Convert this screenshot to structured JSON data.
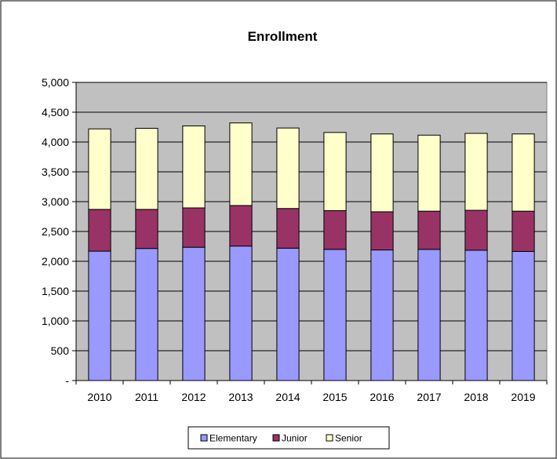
{
  "chart_data": {
    "type": "bar",
    "stacked": true,
    "title": "Enrollment",
    "xlabel": "",
    "ylabel": "",
    "categories": [
      "2010",
      "2011",
      "2012",
      "2013",
      "2014",
      "2015",
      "2016",
      "2017",
      "2018",
      "2019"
    ],
    "ylim": [
      0,
      5000
    ],
    "yticks": [
      0,
      500,
      1000,
      1500,
      2000,
      2500,
      3000,
      3500,
      4000,
      4500,
      5000
    ],
    "ytick_labels": [
      "-",
      "500",
      "1,000",
      "1,500",
      "2,000",
      "2,500",
      "3,000",
      "3,500",
      "4,000",
      "4,500",
      "5,000"
    ],
    "grid": true,
    "legend_position": "bottom",
    "series": [
      {
        "name": "Elementary",
        "color": "#9999ff",
        "values": [
          2170,
          2215,
          2235,
          2255,
          2220,
          2200,
          2190,
          2200,
          2185,
          2165
        ]
      },
      {
        "name": "Junior",
        "color": "#993366",
        "values": [
          700,
          655,
          660,
          680,
          665,
          650,
          640,
          640,
          670,
          675
        ]
      },
      {
        "name": "Senior",
        "color": "#ffffcc",
        "values": [
          1350,
          1360,
          1375,
          1385,
          1350,
          1310,
          1305,
          1275,
          1290,
          1295
        ]
      }
    ],
    "plot_background": "#c0c0c0"
  }
}
